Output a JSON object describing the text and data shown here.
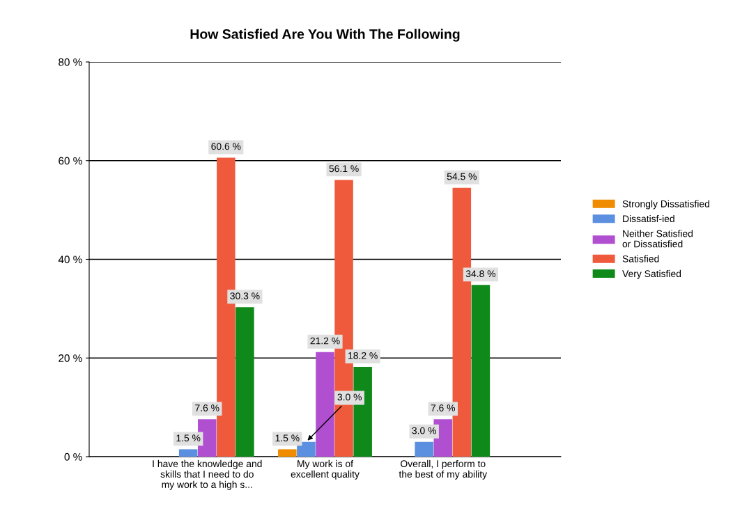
{
  "chart_data": {
    "type": "bar",
    "title": "How Satisfied Are You With The Following",
    "categories": [
      "I have the knowledge and\nskills that I need to do\nmy work to a high s...",
      "My work is of\nexcellent quality",
      "Overall, I perform to\nthe best of my ability"
    ],
    "series": [
      {
        "name": "Strongly Dissatisfied",
        "color": "#f08c00",
        "values": [
          null,
          1.5,
          null
        ],
        "value_labels": [
          null,
          "1.5 %",
          null
        ]
      },
      {
        "name": "Dissatisf-ied",
        "color": "#5b8fe0",
        "values": [
          1.5,
          3.0,
          3.0
        ],
        "value_labels": [
          "1.5 %",
          "3.0 %",
          "3.0 %"
        ]
      },
      {
        "name": "Neither Satisfied\nor Dissatisfied",
        "color": "#b04fd0",
        "values": [
          7.6,
          21.2,
          7.6
        ],
        "value_labels": [
          "7.6 %",
          "21.2 %",
          "7.6 %"
        ]
      },
      {
        "name": "Satisfied",
        "color": "#f05a3c",
        "values": [
          60.6,
          56.1,
          54.5
        ],
        "value_labels": [
          "60.6 %",
          "56.1 %",
          "54.5 %"
        ]
      },
      {
        "name": "Very Satisfied",
        "color": "#0f8a1a",
        "values": [
          30.3,
          18.2,
          34.8
        ],
        "value_labels": [
          "30.3 %",
          "18.2 %",
          "34.8 %"
        ]
      }
    ],
    "ylim": [
      0,
      80
    ],
    "yticks": [
      {
        "value": 0,
        "label": "0 %"
      },
      {
        "value": 20,
        "label": "20 %"
      },
      {
        "value": 40,
        "label": "40 %"
      },
      {
        "value": 60,
        "label": "60 %"
      },
      {
        "value": 80,
        "label": "80 %"
      }
    ],
    "grid": "y",
    "legend": "right"
  }
}
